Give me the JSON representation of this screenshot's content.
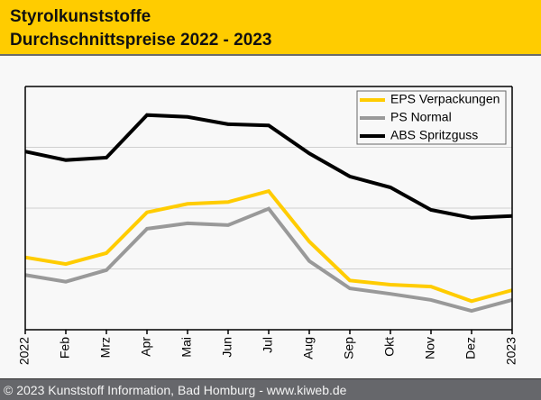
{
  "header": {
    "title": "Styrolkunststoffe",
    "subtitle": "Durchschnittspreise 2022 - 2023"
  },
  "footer": {
    "copyright": "© 2023 Kunststoff Information, Bad Homburg - www.kiweb.de"
  },
  "colors": {
    "header_bg": "#ffcc00",
    "eps": "#ffcc00",
    "ps": "#999999",
    "abs": "#000000",
    "grid": "#d0d0d0"
  },
  "chart_data": {
    "type": "line",
    "title": "Styrolkunststoffe Durchschnittspreise 2022 - 2023",
    "xlabel": "",
    "ylabel": "",
    "y_units_note": "relative (no y tick labels shown; 4 equal gridline bands)",
    "ylim": [
      0,
      4
    ],
    "y_gridlines": [
      1,
      2,
      3
    ],
    "grid": true,
    "legend_position": "top-right",
    "categories": [
      "2022",
      "Feb",
      "Mrz",
      "Apr",
      "Mai",
      "Jun",
      "Jul",
      "Aug",
      "Sep",
      "Okt",
      "Nov",
      "Dez",
      "2023"
    ],
    "series": [
      {
        "name": "EPS Verpackungen",
        "color": "#ffcc00",
        "values": [
          1.19,
          1.08,
          1.26,
          1.93,
          2.07,
          2.1,
          2.28,
          1.45,
          0.81,
          0.74,
          0.71,
          0.47,
          0.65
        ]
      },
      {
        "name": "PS Normal",
        "color": "#999999",
        "values": [
          0.9,
          0.79,
          0.98,
          1.66,
          1.75,
          1.72,
          1.99,
          1.13,
          0.68,
          0.59,
          0.49,
          0.31,
          0.49
        ]
      },
      {
        "name": "ABS Spritzguss",
        "color": "#000000",
        "values": [
          2.93,
          2.79,
          2.83,
          3.53,
          3.5,
          3.38,
          3.36,
          2.9,
          2.52,
          2.34,
          1.97,
          1.84,
          1.87
        ]
      }
    ]
  }
}
